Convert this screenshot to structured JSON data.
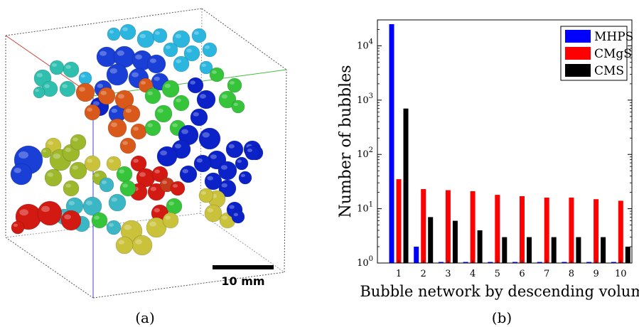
{
  "panel_a": {
    "caption": "(a)",
    "scale_bar_label": "10 mm"
  },
  "panel_b": {
    "caption": "(b)"
  },
  "colors": {
    "MHPS": "#0000ff",
    "CMgS": "#ff0000",
    "CMS": "#000000",
    "bubble_palette": [
      "#1a3fd6",
      "#0a22c8",
      "#d8591a",
      "#35c43a",
      "#9db82a",
      "#c9c23a",
      "#3ab6c4",
      "#2aa6d8",
      "#d21a12",
      "#c53a1a",
      "#2fbfae",
      "#2bb6e0"
    ]
  },
  "chart_data": {
    "type": "bar",
    "xlabel": "Bubble network by descending volume",
    "ylabel": "Number of bubbles",
    "yscale": "log",
    "ylim": [
      1,
      30000
    ],
    "yticks": [
      1,
      10,
      100,
      1000,
      10000
    ],
    "ytick_labels": [
      {
        "base": "10",
        "exp": "0"
      },
      {
        "base": "10",
        "exp": "1"
      },
      {
        "base": "10",
        "exp": "2"
      },
      {
        "base": "10",
        "exp": "3"
      },
      {
        "base": "10",
        "exp": "4"
      }
    ],
    "categories": [
      "1",
      "2",
      "3",
      "4",
      "5",
      "6",
      "7",
      "8",
      "9",
      "10"
    ],
    "legend_position": "top-right",
    "series": [
      {
        "name": "MHPS",
        "values": [
          25000,
          2,
          1,
          1,
          1,
          1,
          1,
          1,
          1,
          1
        ]
      },
      {
        "name": "CMgS",
        "values": [
          35,
          23,
          22,
          21,
          18,
          17,
          16,
          16,
          15,
          14
        ]
      },
      {
        "name": "CMS",
        "values": [
          700,
          7,
          6,
          4,
          3,
          3,
          3,
          3,
          3,
          2
        ]
      }
    ]
  }
}
